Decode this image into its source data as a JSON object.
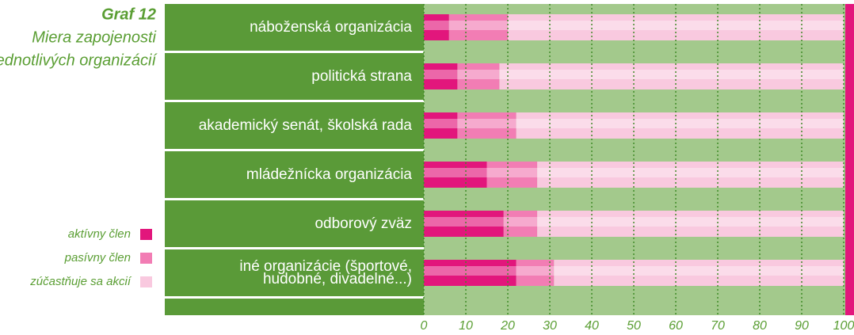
{
  "chart_data": {
    "type": "stacked-barh",
    "title": "Graf 12",
    "subtitle_lines": [
      "Miera zapojenosti",
      "jednotlivých organizácií"
    ],
    "categories": [
      "náboženská organizácia",
      "politická strana",
      "akademický senát, školská rada",
      "mládežnícka organizácia",
      "odborový zväz",
      "iné organizácie (športové,\nhudobné, divadelné...)"
    ],
    "series": [
      {
        "name": "aktívny člen",
        "color": "#e2167c",
        "values": [
          6,
          8,
          8,
          15,
          19,
          22
        ]
      },
      {
        "name": "pasívny člen",
        "color": "#f27db4",
        "values": [
          14,
          10,
          14,
          12,
          8,
          9
        ]
      },
      {
        "name": "zúčastňuje sa akcií",
        "color": "#f9c9df",
        "values": [
          80,
          82,
          78,
          73,
          73,
          69
        ]
      }
    ],
    "xlim": [
      0,
      100
    ],
    "xticks": [
      0,
      10,
      20,
      30,
      40,
      50,
      60,
      70,
      80,
      90,
      100
    ],
    "grid": true
  }
}
